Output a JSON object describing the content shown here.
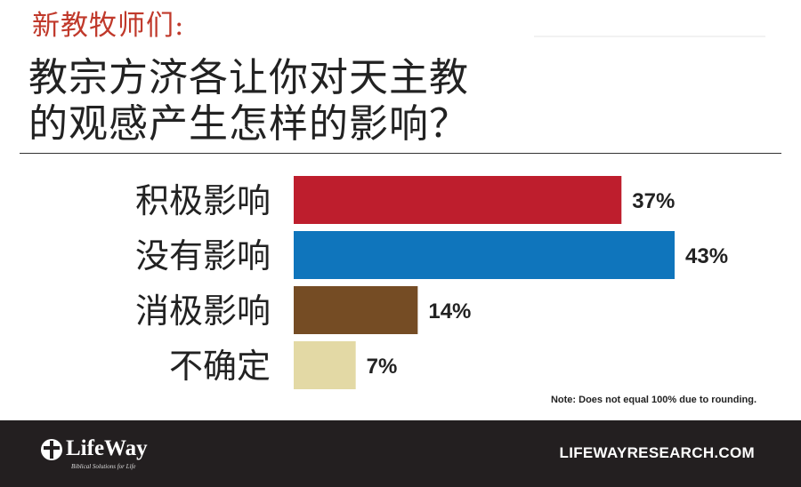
{
  "header": {
    "subtitle": "新教牧师们:",
    "title_line1": "教宗方济各让你对天主教",
    "title_line2": "的观感产生怎样的影响？"
  },
  "chart_data": {
    "type": "bar",
    "orientation": "horizontal",
    "categories": [
      "积极影响",
      "没有影响",
      "消极影响",
      "不确定"
    ],
    "values": [
      37,
      43,
      14,
      7
    ],
    "value_labels": [
      "37%",
      "43%",
      "14%",
      "7%"
    ],
    "colors": [
      "#be1e2d",
      "#0f75bc",
      "#754c24",
      "#e3d9a5"
    ],
    "title": "",
    "xlabel": "",
    "ylabel": "",
    "unit": "%",
    "grid": false
  },
  "note": "Note: Does not equal 100% due to rounding.",
  "footer": {
    "logo_name": "LifeWay",
    "logo_tagline": "Biblical Solutions for Life",
    "site_link": "LIFEWAYRESEARCH.COM"
  },
  "colors": {
    "subtitle": "#c0392b",
    "footer_bg": "#231f20"
  },
  "icons": {
    "logo_mark": "lifeway-cross-mark-icon"
  }
}
